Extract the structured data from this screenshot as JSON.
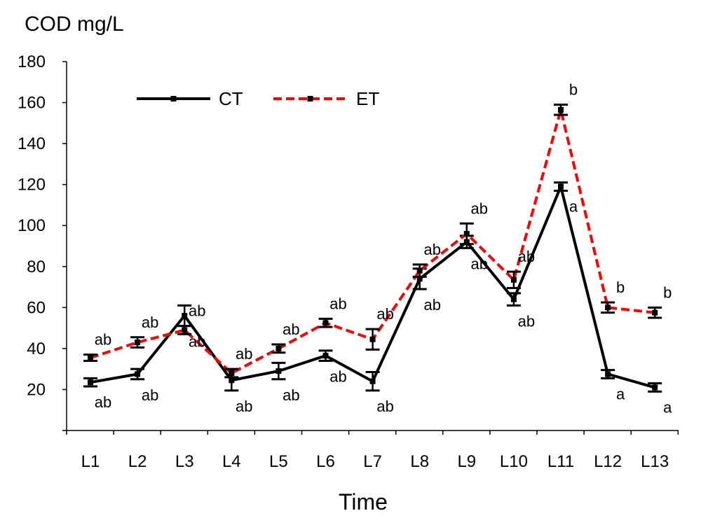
{
  "chart_data": {
    "type": "line",
    "ylabel": "COD mg/L",
    "xlabel": "Time",
    "ylim": [
      0,
      180
    ],
    "yticks": [
      20,
      40,
      60,
      80,
      100,
      120,
      140,
      160,
      180
    ],
    "grid": false,
    "legend_placement": "top-left",
    "categories": [
      "L1",
      "L2",
      "L3",
      "L4",
      "L5",
      "L6",
      "L7",
      "L8",
      "L9",
      "L10",
      "L11",
      "L12",
      "L13"
    ],
    "series": [
      {
        "name": "CT",
        "color": "#000000",
        "line_style": "solid",
        "values": [
          23.5,
          27.5,
          56,
          24.5,
          29,
          36.5,
          24,
          74,
          92,
          64,
          119,
          27.5,
          21
        ],
        "errors": [
          2,
          2.5,
          5,
          5,
          4,
          2.5,
          4.5,
          5,
          3,
          3,
          2,
          2,
          2
        ],
        "labels": [
          "ab",
          "ab",
          "ab",
          "ab",
          "ab",
          "ab",
          "ab",
          "ab",
          "ab",
          "ab",
          "a",
          "a",
          "a"
        ]
      },
      {
        "name": "ET",
        "color": "#ff0000",
        "line_style": "dashed",
        "values": [
          35.5,
          43,
          49,
          28,
          40,
          52.5,
          44.5,
          78,
          96,
          73.5,
          156.5,
          60,
          57.5
        ],
        "errors": [
          1.5,
          2.5,
          2,
          2,
          2,
          2,
          5,
          3,
          5,
          4,
          2.5,
          2.5,
          2.5
        ],
        "labels": [
          "ab",
          "ab",
          "ab",
          "ab",
          "ab",
          "ab",
          "ab",
          "ab",
          "ab",
          "ab",
          "b",
          "b",
          "b"
        ]
      }
    ]
  }
}
